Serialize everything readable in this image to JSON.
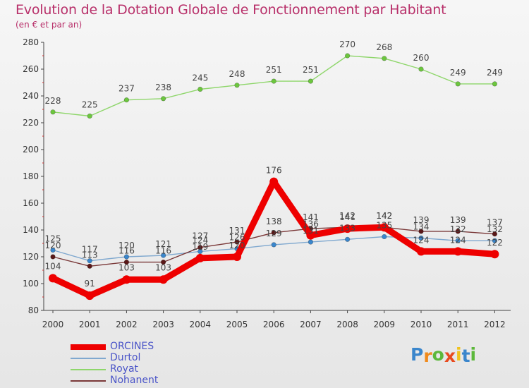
{
  "header": {
    "title": "Evolution de la Dotation Globale de Fonctionnement par Habitant",
    "subtitle": "(en € et par an)"
  },
  "chart_data": {
    "type": "line",
    "title": "Evolution de la Dotation Globale de Fonctionnement par Habitant",
    "subtitle": "(en € et par an)",
    "xlabel": "",
    "ylabel": "",
    "ylim": [
      80,
      280
    ],
    "yticks": [
      80,
      100,
      120,
      140,
      160,
      180,
      200,
      220,
      240,
      260,
      280
    ],
    "x": [
      "2000",
      "2001",
      "2002",
      "2003",
      "2004",
      "2005",
      "2006",
      "2007",
      "2008",
      "2009",
      "2010",
      "2011",
      "2012"
    ],
    "grid": false,
    "legend_position": "bottom-left",
    "series": [
      {
        "name": "Royat",
        "color": "#8ed66a",
        "marker": "#6cc63e",
        "values": [
          228,
          225,
          237,
          238,
          245,
          248,
          251,
          251,
          270,
          268,
          260,
          249,
          249
        ],
        "labels": [
          "228",
          "225",
          "237",
          "238",
          "245",
          "248",
          "251",
          "251",
          "270",
          "268",
          "260",
          "249",
          "249"
        ]
      },
      {
        "name": "Durtol",
        "color": "#7fa8cf",
        "marker": "#3a86cc",
        "values": [
          125,
          117,
          120,
          121,
          124,
          126,
          129,
          131,
          133,
          135,
          134,
          132,
          132
        ],
        "labels": [
          "125",
          "117",
          "120",
          "121",
          "124",
          "126",
          "129",
          "131",
          "133",
          "135",
          "134",
          "132",
          "132"
        ]
      },
      {
        "name": "Nohanent",
        "color": "#7a3838",
        "marker": "#5a1818",
        "values": [
          120,
          113,
          116,
          116,
          127,
          131,
          138,
          141,
          142,
          142,
          139,
          139,
          137
        ],
        "labels": [
          "120",
          "113",
          "116",
          "116",
          "127",
          "131",
          "138",
          "141",
          "142",
          "142",
          "139",
          "139",
          "137"
        ]
      },
      {
        "name": "ORCINES",
        "color": "#ee0000",
        "marker": "#ee0000",
        "values": [
          104,
          91,
          103,
          103,
          119,
          120,
          176,
          136,
          141,
          142,
          124,
          124,
          122
        ],
        "labels": [
          "104",
          "91",
          "103",
          "103",
          "119",
          "120",
          "176",
          "136",
          "141",
          "142",
          "124",
          "124",
          "122"
        ]
      }
    ]
  },
  "legend": {
    "items": [
      {
        "label": "ORCINES",
        "color": "#ee0000",
        "thickness": "thick"
      },
      {
        "label": "Durtol",
        "color": "#7fa8cf",
        "thickness": "thin"
      },
      {
        "label": "Royat",
        "color": "#8ed66a",
        "thickness": "thin"
      },
      {
        "label": "Nohanent",
        "color": "#7a3838",
        "thickness": "thin"
      }
    ]
  },
  "brand": {
    "text": "Proxiti",
    "letters": [
      "P",
      "r",
      "o",
      "x",
      "i",
      "t",
      "i"
    ],
    "colors": [
      "#3a86cc",
      "#f08a1c",
      "#5cb83a",
      "#e84a1e",
      "#f0c21c",
      "#3a86cc",
      "#5cb83a"
    ]
  }
}
